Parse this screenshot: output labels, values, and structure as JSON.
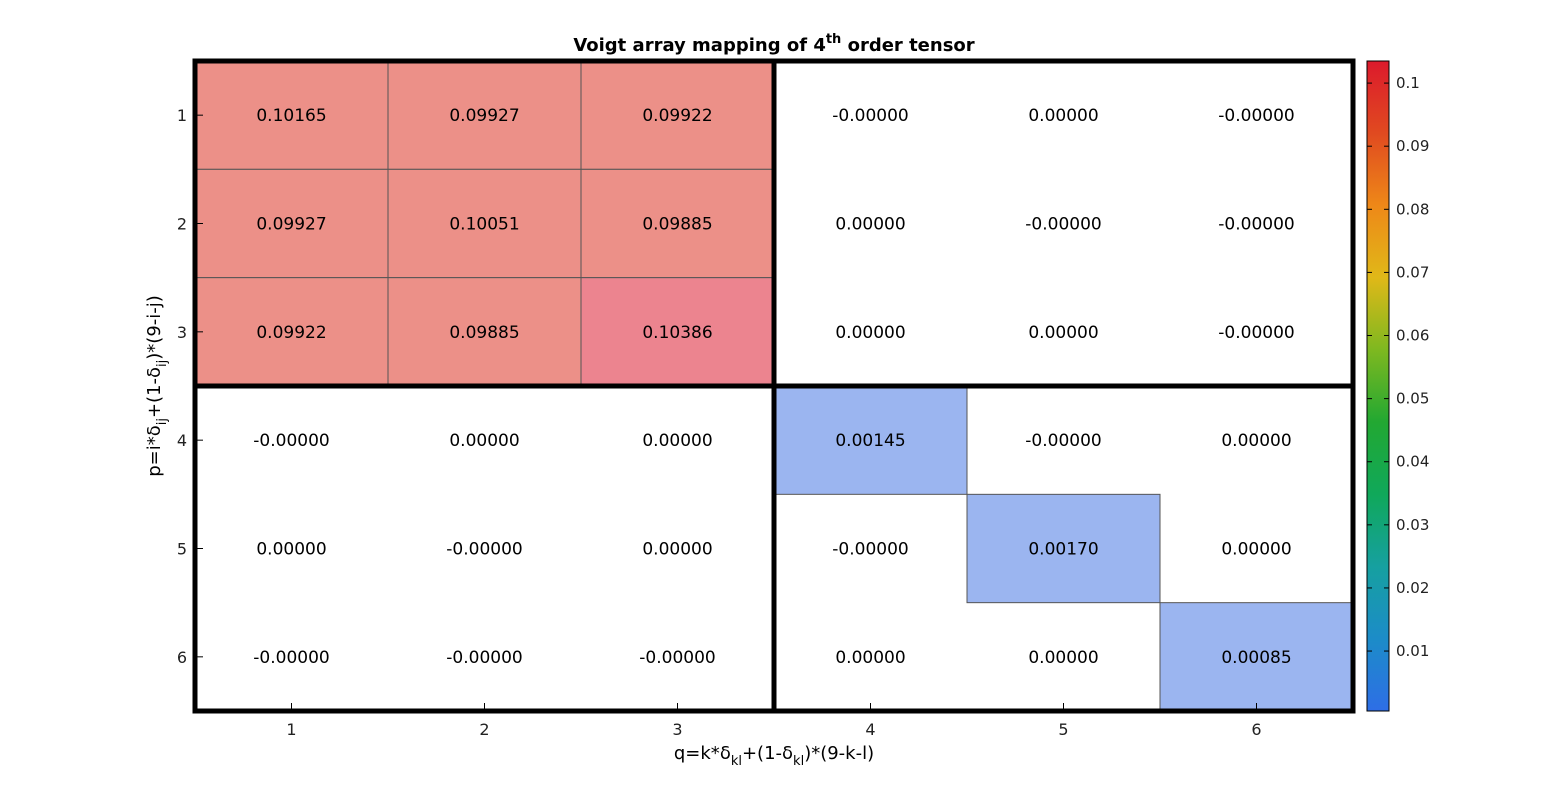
{
  "chart_data": {
    "type": "heatmap",
    "title": "Voigt array mapping of 4",
    "title_superscript": "th",
    "title_suffix": " order tensor",
    "xlabel": {
      "parts": [
        {
          "t": "q=k*",
          "s": "n"
        },
        {
          "t": "δ",
          "s": "n"
        },
        {
          "t": "kl",
          "s": "sub"
        },
        {
          "t": "+(1-",
          "s": "n"
        },
        {
          "t": "δ",
          "s": "n"
        },
        {
          "t": "kl",
          "s": "sub"
        },
        {
          "t": ")*(9-k-l)",
          "s": "n"
        }
      ]
    },
    "ylabel": {
      "parts": [
        {
          "t": "p=i*",
          "s": "n"
        },
        {
          "t": "δ",
          "s": "n"
        },
        {
          "t": "ij",
          "s": "sub"
        },
        {
          "t": "+(1-",
          "s": "n"
        },
        {
          "t": "δ",
          "s": "n"
        },
        {
          "t": "ij",
          "s": "sub"
        },
        {
          "t": ")*(9-i-j)",
          "s": "n"
        }
      ]
    },
    "x_ticks": [
      "1",
      "2",
      "3",
      "4",
      "5",
      "6"
    ],
    "y_ticks": [
      "1",
      "2",
      "3",
      "4",
      "5",
      "6"
    ],
    "cell_labels": [
      [
        "0.10165",
        "0.09927",
        "0.09922",
        "-0.00000",
        "0.00000",
        "-0.00000"
      ],
      [
        "0.09927",
        "0.10051",
        "0.09885",
        "0.00000",
        "-0.00000",
        "-0.00000"
      ],
      [
        "0.09922",
        "0.09885",
        "0.10386",
        "0.00000",
        "0.00000",
        "-0.00000"
      ],
      [
        "-0.00000",
        "0.00000",
        "0.00000",
        "0.00145",
        "-0.00000",
        "0.00000"
      ],
      [
        "0.00000",
        "-0.00000",
        "0.00000",
        "-0.00000",
        "0.00170",
        "0.00000"
      ],
      [
        "-0.00000",
        "-0.00000",
        "-0.00000",
        "0.00000",
        "0.00000",
        "0.00085"
      ]
    ],
    "values": [
      [
        0.10165,
        0.09927,
        0.09922,
        0,
        0,
        0
      ],
      [
        0.09927,
        0.10051,
        0.09885,
        0,
        0,
        0
      ],
      [
        0.09922,
        0.09885,
        0.10386,
        0,
        0,
        0
      ],
      [
        0,
        0,
        0,
        0.00145,
        0,
        0
      ],
      [
        0,
        0,
        0,
        0,
        0.0017,
        0
      ],
      [
        0,
        0,
        0,
        0,
        0,
        0.00085
      ]
    ],
    "highlighted_cells": [
      [
        0,
        0,
        "high"
      ],
      [
        0,
        1,
        "high"
      ],
      [
        0,
        2,
        "high"
      ],
      [
        1,
        0,
        "high"
      ],
      [
        1,
        1,
        "high"
      ],
      [
        1,
        2,
        "high"
      ],
      [
        2,
        0,
        "high"
      ],
      [
        2,
        1,
        "high"
      ],
      [
        2,
        2,
        "high"
      ],
      [
        3,
        3,
        "low"
      ],
      [
        4,
        4,
        "low"
      ],
      [
        5,
        5,
        "low"
      ]
    ],
    "colors": {
      "high_base": "#ec9088",
      "high_peak": "#ec848f",
      "low": "#9bb5f0",
      "grid_line": "#555555",
      "block_border": "#000000"
    },
    "block_divider": {
      "after_row": 3,
      "after_col": 3
    },
    "colorbar": {
      "range": [
        0.0005,
        0.1035
      ],
      "ticks": [
        {
          "value": 0.01,
          "label": "0.01"
        },
        {
          "value": 0.02,
          "label": "0.02"
        },
        {
          "value": 0.03,
          "label": "0.03"
        },
        {
          "value": 0.04,
          "label": "0.04"
        },
        {
          "value": 0.05,
          "label": "0.05"
        },
        {
          "value": 0.06,
          "label": "0.06"
        },
        {
          "value": 0.07,
          "label": "0.07"
        },
        {
          "value": 0.08,
          "label": "0.08"
        },
        {
          "value": 0.09,
          "label": "0.09"
        },
        {
          "value": 0.1,
          "label": "0.1"
        }
      ],
      "stops": [
        "#2e6ee6",
        "#1c8cc8",
        "#16a0a0",
        "#10a85a",
        "#22a832",
        "#7eb820",
        "#e0b818",
        "#ee8818",
        "#e04a20",
        "#dc1a2c"
      ]
    }
  }
}
